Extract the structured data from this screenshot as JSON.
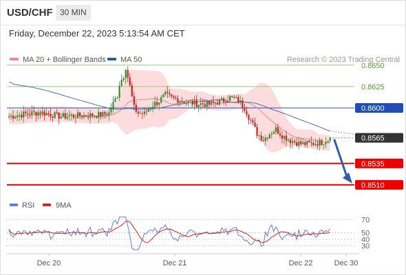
{
  "header": {
    "symbol": "USD/CHF",
    "timeframe": "30 MIN"
  },
  "date_line": "Friday, December 22, 2023 5:13:54 AM CET",
  "legend": {
    "ma_label": "MA 20 + Bollinger Bands",
    "ma50_label": "MA 50",
    "credit": "Research © 2023 Trading Central"
  },
  "rsi_legend": {
    "rsi_label": "RSI",
    "ma_label": "9MA"
  },
  "colors": {
    "candle_up": "#2e8b2e",
    "candle_down": "#cc2020",
    "bollinger": "#fbd0d0",
    "ma20": "#e88a8a",
    "ma50": "#4a6fa8",
    "green_level": "#9acd70",
    "blue_level": "#1f4fb5",
    "red_level": "#ee0000",
    "arrow": "#2d5ea6",
    "rsi": "#5b7fd6",
    "rsi_ma": "#dd2020"
  },
  "chart_data": [
    {
      "type": "candlestick",
      "x_tick_labels": [
        "Dec 20",
        "Dec 21",
        "Dec 22",
        "Dec 30"
      ],
      "ylim": [
        0.8497,
        0.8678
      ],
      "last_price": 0.8565,
      "levels": [
        {
          "label": "0.8650",
          "value": 0.865,
          "kind": "resistance-green"
        },
        {
          "label": "0.8625",
          "value": 0.8625,
          "kind": "resistance-green"
        },
        {
          "label": "0.8600",
          "value": 0.86,
          "kind": "pivot-blue"
        },
        {
          "label": "0.8565",
          "value": 0.8565,
          "kind": "last-price"
        },
        {
          "label": "0.8535",
          "value": 0.8535,
          "kind": "support-red"
        },
        {
          "label": "0.8510",
          "value": 0.851,
          "kind": "support-red"
        }
      ],
      "series": [
        {
          "name": "MA 20",
          "note": "with Bollinger Bands"
        },
        {
          "name": "MA 50"
        }
      ],
      "forecast": {
        "from": 0.8565,
        "to": 0.851
      }
    },
    {
      "type": "line",
      "ylim": [
        22,
        78
      ],
      "y_tick_labels": [
        "70",
        "50",
        "40",
        "30"
      ],
      "y_ticks": [
        70,
        50,
        40,
        30
      ],
      "series": [
        {
          "name": "RSI"
        },
        {
          "name": "9MA"
        }
      ]
    }
  ]
}
